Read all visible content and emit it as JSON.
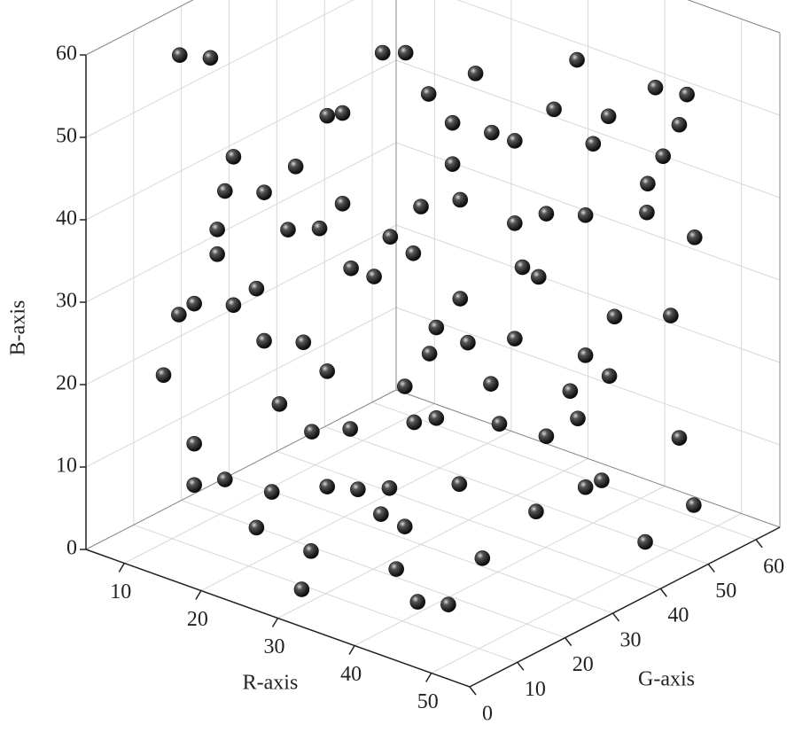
{
  "chart_data": {
    "type": "scatter3d",
    "xlabel": "R-axis",
    "ylabel": "G-axis",
    "zlabel": "B-axis",
    "xlim": [
      5,
      55
    ],
    "xticks": [
      10,
      20,
      30,
      40,
      50
    ],
    "ylim": [
      0,
      65
    ],
    "yticks": [
      0,
      10,
      20,
      30,
      40,
      50,
      60
    ],
    "zlim": [
      0,
      60
    ],
    "zticks": [
      0,
      10,
      20,
      30,
      40,
      50,
      60
    ],
    "grid": true,
    "color": "#1a1a1a",
    "x": [
      11,
      15,
      12,
      14,
      30,
      46,
      42,
      53,
      50,
      41,
      46,
      47,
      45,
      28,
      25,
      34,
      47,
      49,
      47,
      45,
      35,
      32,
      26,
      21,
      25,
      33,
      38,
      16,
      16,
      20,
      18,
      20,
      19,
      19,
      18,
      22,
      24,
      23,
      22,
      24,
      28,
      29,
      31,
      31,
      23,
      24,
      26,
      26,
      24,
      26,
      30,
      31,
      31,
      33,
      36,
      37,
      36,
      36,
      37,
      39,
      38,
      37,
      39,
      46,
      45,
      42,
      40,
      38,
      36,
      31,
      29,
      32,
      28,
      33,
      36,
      34,
      32,
      32,
      31,
      27,
      24,
      24,
      22,
      23,
      22,
      21,
      16,
      39,
      44,
      39,
      38,
      45,
      37,
      27
    ],
    "y": [
      10,
      10,
      5,
      5,
      5,
      10,
      10,
      40,
      55,
      45,
      60,
      60,
      60,
      30,
      30,
      35,
      50,
      40,
      55,
      30,
      30,
      30,
      35,
      10,
      15,
      20,
      30,
      5,
      5,
      5,
      10,
      5,
      5,
      5,
      10,
      10,
      10,
      10,
      20,
      20,
      20,
      25,
      20,
      25,
      20,
      20,
      20,
      20,
      25,
      30,
      30,
      35,
      35,
      40,
      40,
      45,
      45,
      40,
      45,
      50,
      55,
      50,
      55,
      55,
      55,
      50,
      50,
      45,
      40,
      30,
      30,
      30,
      35,
      35,
      35,
      40,
      35,
      35,
      25,
      20,
      20,
      15,
      15,
      15,
      10,
      10,
      5,
      50,
      55,
      50,
      50,
      60,
      40,
      25
    ],
    "z": [
      59,
      60,
      22,
      30,
      2,
      4,
      3,
      5,
      4,
      58,
      51,
      34,
      9,
      59,
      58,
      57,
      40,
      31,
      26,
      9,
      9,
      16,
      12,
      5,
      2,
      1,
      1,
      10,
      15,
      12,
      49,
      47,
      42,
      39,
      31,
      28,
      21,
      10,
      14,
      8,
      9,
      8,
      7,
      4,
      39,
      53,
      54,
      43,
      33,
      36,
      41,
      45,
      50,
      48,
      38,
      38,
      30,
      24,
      11,
      4,
      3,
      15,
      16,
      45,
      53,
      50,
      46,
      51,
      48,
      55,
      35,
      27,
      21,
      24,
      20,
      13,
      29,
      41,
      21,
      16,
      22,
      27,
      40,
      48,
      46,
      34,
      32,
      37,
      41,
      20,
      12,
      47,
      33,
      33
    ]
  }
}
